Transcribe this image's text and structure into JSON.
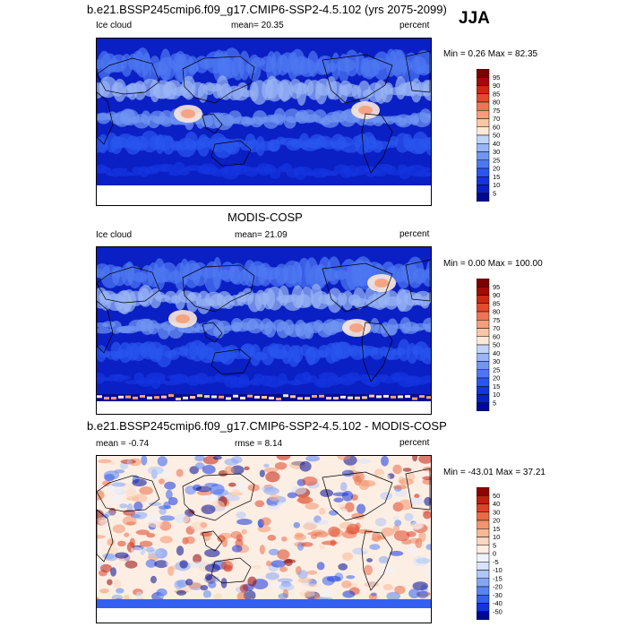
{
  "season": "JJA",
  "colors": {
    "blue_ramp": [
      "#000a8f",
      "#0a1fc4",
      "#1434e0",
      "#2a55ef",
      "#4d78f2",
      "#7096f2",
      "#98b5f5",
      "#c0d4f8",
      "#e6eefb",
      "#fde9d8",
      "#fbc6a6",
      "#f59e7a",
      "#ef7456",
      "#e44a2e",
      "#cc2815",
      "#a30b06",
      "#7d0000"
    ],
    "diff_ramp": [
      "#000a8f",
      "#1434e0",
      "#3360f0",
      "#5a84f2",
      "#84a6f5",
      "#aec6f8",
      "#d6e3fb",
      "#eef3fd",
      "#fdeee4",
      "#fbd7c0",
      "#f8b894",
      "#f3946c",
      "#ea6c47",
      "#dc4427",
      "#c11f0f",
      "#8f0303"
    ],
    "land": "#000000",
    "blank": "#ffffff"
  },
  "panels": [
    {
      "title": "b.e21.BSSP245cmip6.f09_g17.CMIP6-SSP2-4.5.102 (yrs 2075-2099)",
      "left_label": "Ice cloud",
      "center_label": "mean=  20.35",
      "right_label": "percent",
      "minmax": "Min =   0.26 Max =  82.35",
      "colorbar_labels": [
        "95",
        "90",
        "85",
        "80",
        "75",
        "70",
        "60",
        "50",
        "40",
        "30",
        "25",
        "20",
        "15",
        "10",
        "5"
      ]
    },
    {
      "title": "MODIS-COSP",
      "left_label": "Ice cloud",
      "center_label": "mean=  21.09",
      "right_label": "percent",
      "minmax": "Min =   0.00 Max = 100.00",
      "colorbar_labels": [
        "95",
        "90",
        "85",
        "80",
        "75",
        "70",
        "60",
        "50",
        "40",
        "30",
        "25",
        "20",
        "15",
        "10",
        "5"
      ]
    },
    {
      "title": "b.e21.BSSP245cmip6.f09_g17.CMIP6-SSP2-4.5.102 - MODIS-COSP",
      "left_label": "mean =  -0.74",
      "center_label": "rmse =   8.14",
      "right_label": "percent",
      "minmax": "Min = -43.01 Max =  37.21",
      "colorbar_labels": [
        "50",
        "40",
        "30",
        "20",
        "15",
        "10",
        "5",
        "0",
        "-5",
        "-10",
        "-15",
        "-20",
        "-30",
        "-40",
        "-50"
      ]
    }
  ]
}
